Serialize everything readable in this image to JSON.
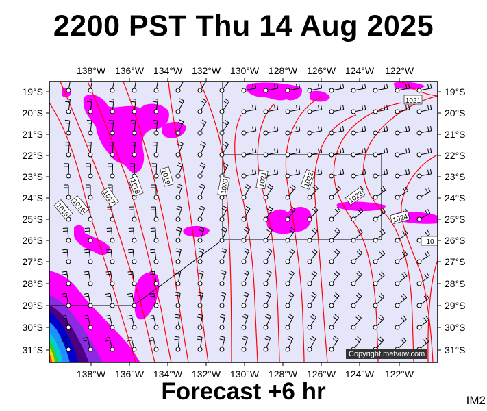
{
  "title": "2200 PST Thu 14 Aug 2025",
  "footer": "Forecast +6 hr",
  "image_id": "IM2",
  "copyright": "Copyright metvuw.com",
  "colors": {
    "ocean": "#e6e6fa",
    "isobar": "#ff0000",
    "rain_light": "#ff00ff",
    "frame": "#000000"
  },
  "map": {
    "lon_labels": [
      "138°W",
      "136°W",
      "134°W",
      "132°W",
      "130°W",
      "128°W",
      "126°W",
      "124°W",
      "122°W"
    ],
    "lat_labels": [
      "19°S",
      "20°S",
      "21°S",
      "22°S",
      "23°S",
      "24°S",
      "25°S",
      "26°S",
      "27°S",
      "28°S",
      "29°S",
      "30°S",
      "31°S"
    ],
    "isobar_labels": [
      "1015",
      "1016",
      "1017",
      "1018",
      "1019",
      "1020",
      "1021",
      "1022",
      "1023",
      "1024",
      "1021",
      "10"
    ]
  }
}
